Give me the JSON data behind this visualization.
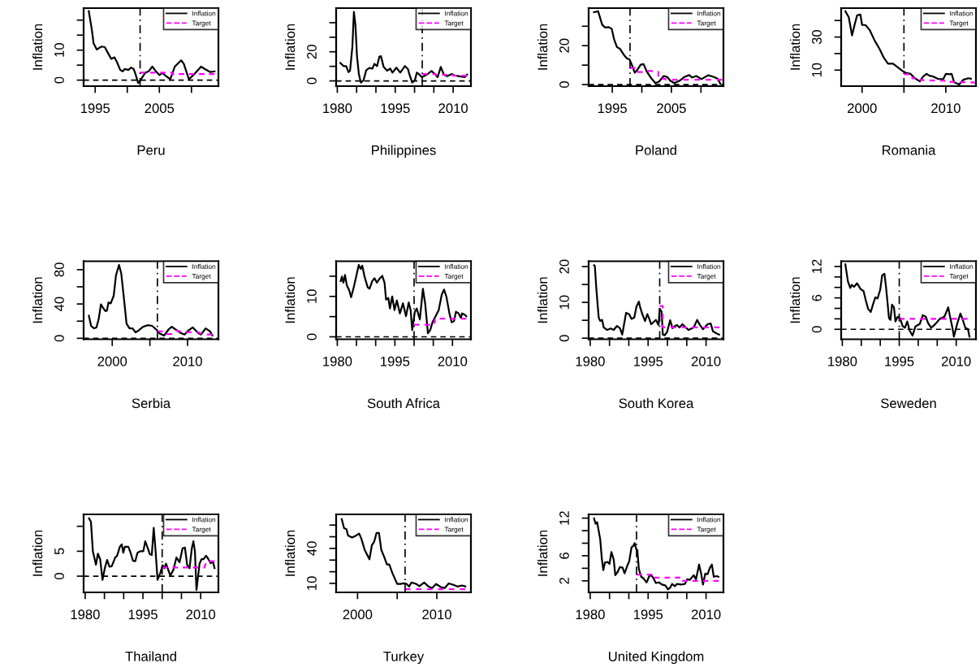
{
  "chart_data": [
    {
      "type": "line",
      "xlabel": "Peru",
      "ylabel": "Inflation",
      "xlim": [
        1993.2,
        2014.2
      ],
      "ylim": [
        -2,
        24
      ],
      "legend": "top right",
      "xticks": [
        1995,
        {
          "value": 2000,
          "label": null
        },
        2005,
        {
          "value": 2010,
          "label": null
        }
      ],
      "yticks": [
        0,
        {
          "value": 5,
          "label": null
        },
        10,
        {
          "value": 15,
          "label": null
        },
        {
          "value": 20,
          "label": null
        }
      ],
      "ref_lines": [
        {
          "axis": "x",
          "value": 2002,
          "line_style": "dashdot",
          "color": "#000000"
        },
        {
          "axis": "y",
          "value": 0,
          "line_style": "dashed",
          "color": "#000000"
        }
      ],
      "series": [
        {
          "name": "Inflation",
          "color": "#000000",
          "line_style": "solid",
          "x": [
            1994.0,
            1994.5,
            1994.75,
            1995.25,
            1995.6,
            1996,
            1996.5,
            1997,
            1997.5,
            1998,
            1998.4,
            1998.9,
            1999.3,
            1999.6,
            2000.2,
            2000.6,
            2001,
            2001.3,
            2001.7,
            2002.3,
            2002.8,
            2003.4,
            2003.9,
            2004.4,
            2005,
            2005.5,
            2006,
            2006.7,
            2007.4,
            2008.4,
            2008.8,
            2009.6,
            2010.5,
            2011.5,
            2012.1,
            2012.9,
            2013.6
          ],
          "values": [
            23.0,
            16.5,
            12.3,
            10.2,
            10.7,
            11.2,
            11.0,
            9.0,
            7.1,
            7.6,
            6.0,
            3.4,
            2.9,
            3.7,
            3.4,
            4.2,
            3.7,
            1.9,
            -1.0,
            0.8,
            2.4,
            3.1,
            4.5,
            3.1,
            1.7,
            2.4,
            1.4,
            0.3,
            4.5,
            6.6,
            5.5,
            0.3,
            2.1,
            4.5,
            3.7,
            2.7,
            2.9
          ]
        },
        {
          "name": "Target",
          "color": "#ff00ff",
          "line_style": "dashed",
          "x": [
            2002,
            2007,
            2007,
            2013.6
          ],
          "values": [
            2.5,
            2.5,
            2,
            2
          ]
        }
      ]
    },
    {
      "type": "line",
      "xlabel": "Philippines",
      "ylabel": "Inflation",
      "xlim": [
        1979.7,
        2014.6
      ],
      "ylim": [
        -3.6,
        50
      ],
      "legend": "top right",
      "xticks": [
        1980,
        {
          "value": 1985,
          "label": null
        },
        {
          "value": 1990,
          "label": null
        },
        1995,
        {
          "value": 2000,
          "label": null
        },
        {
          "value": 2005,
          "label": null
        },
        2010
      ],
      "yticks": [
        0,
        {
          "value": 10,
          "label": null
        },
        20,
        {
          "value": 30,
          "label": null
        },
        {
          "value": 40,
          "label": null
        }
      ],
      "ref_lines": [
        {
          "axis": "x",
          "value": 2002,
          "line_style": "dashdot",
          "color": "#000000"
        },
        {
          "axis": "y",
          "value": 0,
          "line_style": "dashed",
          "color": "#000000"
        }
      ],
      "series": [
        {
          "name": "Inflation",
          "color": "#000000",
          "line_style": "solid",
          "x": [
            1980.8,
            1981.6,
            1982.3,
            1982.9,
            1983.3,
            1983.9,
            1984.3,
            1984.7,
            1985.1,
            1985.6,
            1986.1,
            1986.8,
            1987.5,
            1988.3,
            1989.1,
            1989.6,
            1990.3,
            1990.9,
            1991.3,
            1992,
            1992.9,
            1993.7,
            1994.3,
            1995.3,
            1996.3,
            1997.5,
            1998.3,
            1998.7,
            1999.4,
            2000.1,
            2000.6,
            2001.1,
            2001.9,
            2003.2,
            2004.4,
            2005.2,
            2006,
            2006.8,
            2007.6,
            2008.4,
            2009.6,
            2010.4,
            2011.6,
            2013,
            2013.6
          ],
          "values": [
            12.3,
            10.2,
            10.2,
            6.0,
            7.0,
            23.4,
            47.4,
            38.3,
            17.0,
            4.3,
            -1.1,
            0.4,
            7.4,
            8.9,
            8.5,
            11.7,
            10.2,
            16.6,
            17.0,
            9.6,
            7.0,
            8.5,
            5.7,
            9.1,
            5.7,
            10.2,
            8.1,
            4.3,
            -1.1,
            0.4,
            5.7,
            4.7,
            2.6,
            4.3,
            6.8,
            4.9,
            2.6,
            9.6,
            4.3,
            3.2,
            4.7,
            3.8,
            3.2,
            2.6,
            4.3
          ]
        },
        {
          "name": "Target",
          "color": "#ff00ff",
          "line_style": "dashed",
          "x": [
            2002,
            2005.5,
            2005.5,
            2010,
            2010,
            2013.6
          ],
          "values": [
            4.7,
            4.7,
            4.2,
            4.2,
            3.6,
            3.6
          ]
        }
      ]
    },
    {
      "type": "line",
      "xlabel": "Poland",
      "ylabel": "Inflation",
      "xlim": [
        1991.0,
        2013.8
      ],
      "ylim": [
        -0.8,
        39.3
      ],
      "legend": "top right",
      "xticks": [
        1995,
        {
          "value": 2000,
          "label": null
        },
        2005,
        {
          "value": 2010,
          "label": null
        }
      ],
      "yticks": [
        0,
        {
          "value": 10,
          "label": null
        },
        20,
        {
          "value": 30,
          "label": null
        }
      ],
      "ref_lines": [
        {
          "axis": "x",
          "value": 1998,
          "line_style": "dashdot",
          "color": "#000000"
        },
        {
          "axis": "y",
          "value": 0,
          "line_style": "dashed",
          "color": "#000000"
        }
      ],
      "series": [
        {
          "name": "Inflation",
          "color": "#000000",
          "line_style": "solid",
          "x": [
            1991.9,
            1992.6,
            1993.3,
            1993.8,
            1994.4,
            1994.9,
            1995.3,
            1995.8,
            1996.3,
            1997,
            1997.5,
            1997.9,
            1998.3,
            1998.8,
            1999.2,
            1999.8,
            2000.3,
            2000.8,
            2001.5,
            2002.3,
            2002.9,
            2003.7,
            2004.3,
            2004.8,
            2005.5,
            2006.4,
            2007.2,
            2008,
            2008.5,
            2009.2,
            2010.1,
            2011.2,
            2012,
            2012.8,
            2013.3
          ],
          "values": [
            37.2,
            37.7,
            30.7,
            29.3,
            29.5,
            28.7,
            23.3,
            19.2,
            18.4,
            15.1,
            13.4,
            13.0,
            10.2,
            6.1,
            7.4,
            10.2,
            10.5,
            6.9,
            3.6,
            0.8,
            1.5,
            4.4,
            3.9,
            2.0,
            0.8,
            2.0,
            3.9,
            4.9,
            3.6,
            4.4,
            2.8,
            4.8,
            4.1,
            3.1,
            0.3
          ]
        },
        {
          "name": "Target",
          "color": "#ff00ff",
          "line_style": "dashed",
          "x": [
            1998,
            1999.2,
            1999.2,
            2000.5,
            2000.5,
            2002.8,
            2002.8,
            2004,
            2004,
            2013.6
          ],
          "values": [
            8.5,
            8.5,
            6.5,
            6.5,
            7,
            7,
            3,
            3,
            2.5,
            2.5
          ]
        }
      ]
    },
    {
      "type": "line",
      "xlabel": "Romania",
      "ylabel": "Inflation",
      "xlim": [
        1997.5,
        2013.6
      ],
      "ylim": [
        0.3,
        47.5
      ],
      "legend": "top right",
      "xticks": [
        2000,
        {
          "value": 2005,
          "label": null
        },
        2010
      ],
      "yticks": [
        10,
        {
          "value": 20,
          "label": null
        },
        30,
        {
          "value": 40,
          "label": null
        }
      ],
      "ref_lines": [
        {
          "axis": "x",
          "value": 2005,
          "line_style": "dashdot",
          "color": "#000000"
        }
      ],
      "series": [
        {
          "name": "Inflation",
          "color": "#000000",
          "line_style": "solid",
          "x": [
            1998.0,
            1998.4,
            1998.8,
            1999.1,
            1999.4,
            1999.8,
            2000,
            2000.4,
            2000.9,
            2001.5,
            2002.1,
            2002.6,
            2003.1,
            2003.7,
            2004.3,
            2004.8,
            2005.2,
            2005.8,
            2006.3,
            2006.9,
            2007.3,
            2007.7,
            2008.1,
            2008.5,
            2009.1,
            2009.7,
            2010.0,
            2010.5,
            2010.7,
            2011.0,
            2011.6,
            2012.1,
            2012.7,
            2013.0
          ],
          "values": [
            45.6,
            42.1,
            31.0,
            37.3,
            43.1,
            43.6,
            37.3,
            37.3,
            34.3,
            27.9,
            22.7,
            17.4,
            13.9,
            13.9,
            11.6,
            9.6,
            8.4,
            7.7,
            5.1,
            3.2,
            6.1,
            7.7,
            6.5,
            6.1,
            4.6,
            4.6,
            7.7,
            7.5,
            7.7,
            2.6,
            1.3,
            4.2,
            5.1,
            4.8
          ]
        },
        {
          "name": "Target",
          "color": "#ff00ff",
          "line_style": "dashed",
          "x": [
            2005,
            2006,
            2006,
            2007,
            2007,
            2010,
            2010,
            2013.6
          ],
          "values": [
            7.5,
            7.5,
            5,
            5,
            4,
            3.5,
            3,
            2.5
          ]
        }
      ]
    },
    {
      "type": "line",
      "xlabel": "Serbia",
      "ylabel": "Inflation",
      "xlim": [
        1996.2,
        2014.1
      ],
      "ylim": [
        -1.1,
        89.8
      ],
      "legend": "top right",
      "xticks": [
        2000,
        {
          "value": 2005,
          "label": null
        },
        2010
      ],
      "yticks": [
        0,
        {
          "value": 20,
          "label": null
        },
        40,
        {
          "value": 60,
          "label": null
        },
        80
      ],
      "ref_lines": [
        {
          "axis": "x",
          "value": 2006,
          "line_style": "dashdot",
          "color": "#000000"
        },
        {
          "axis": "y",
          "value": 0,
          "line_style": "dashed",
          "color": "#000000"
        }
      ],
      "series": [
        {
          "name": "Inflation",
          "color": "#000000",
          "line_style": "solid",
          "x": [
            1996.9,
            1997.2,
            1997.6,
            1997.9,
            1998.2,
            1998.5,
            1998.8,
            1999.1,
            1999.3,
            1999.5,
            1999.8,
            2000.2,
            2000.5,
            2000.9,
            2001.2,
            2001.6,
            2001.9,
            2002.3,
            2002.7,
            2003.1,
            2003.5,
            2004.1,
            2004.7,
            2005.3,
            2005.9,
            2006.3,
            2006.9,
            2007.5,
            2007.9,
            2008.5,
            2009.1,
            2009.6,
            2010.1,
            2010.7,
            2011.4,
            2011.8,
            2012.4,
            2013.0,
            2013.3
          ],
          "values": [
            26.2,
            14.2,
            11.6,
            12.7,
            22.5,
            39.6,
            35.3,
            31.6,
            32.4,
            41.8,
            40.7,
            49.8,
            73.5,
            85.5,
            75.3,
            42.5,
            17.1,
            11.6,
            11.6,
            6.9,
            9.1,
            13.5,
            15.3,
            14.5,
            9.8,
            5.5,
            3.3,
            10.5,
            13.5,
            9.8,
            6.2,
            4.4,
            9.1,
            12.7,
            6.2,
            4.4,
            11.6,
            8.0,
            3.3
          ]
        },
        {
          "name": "Target",
          "color": "#ff00ff",
          "line_style": "dashed",
          "x": [
            2006,
            2007,
            2007.2,
            2008.1,
            2008.5,
            2009.5,
            2011.5,
            2012,
            2013.3
          ],
          "values": [
            8,
            8,
            5,
            5,
            9,
            7,
            7,
            4.4,
            4.4
          ]
        }
      ]
    },
    {
      "type": "line",
      "xlabel": "South Africa",
      "ylabel": "Inflation",
      "xlim": [
        1979.7,
        2014.8
      ],
      "ylim": [
        -0.6,
        18.7
      ],
      "legend": "top right",
      "xticks": [
        1980,
        {
          "value": 1985,
          "label": null
        },
        {
          "value": 1990,
          "label": null
        },
        1995,
        {
          "value": 2000,
          "label": null
        },
        {
          "value": 2005,
          "label": null
        },
        2010
      ],
      "yticks": [
        0,
        {
          "value": 5,
          "label": null
        },
        10,
        {
          "value": 15,
          "label": null
        }
      ],
      "ref_lines": [
        {
          "axis": "x",
          "value": 2000,
          "line_style": "dashdot",
          "color": "#000000"
        },
        {
          "axis": "y",
          "value": 0,
          "line_style": "dashed",
          "color": "#000000"
        }
      ],
      "series": [
        {
          "name": "Inflation",
          "color": "#000000",
          "line_style": "solid",
          "x": [
            1980.9,
            1981.2,
            1981.6,
            1982,
            1982.5,
            1983.1,
            1983.6,
            1984.3,
            1985.1,
            1985.6,
            1986.1,
            1986.5,
            1987.1,
            1987.9,
            1988.4,
            1989.1,
            1989.7,
            1990.3,
            1991.1,
            1991.7,
            1992.3,
            1992.7,
            1993.3,
            1993.7,
            1994.3,
            1994.9,
            1995.5,
            1996.3,
            1997.1,
            1997.9,
            1998.6,
            1999.1,
            1999.5,
            2000.2,
            2000.7,
            2001.5,
            2002.3,
            2002.9,
            2003.6,
            2004.2,
            2004.8,
            2005.6,
            2006.4,
            2007.2,
            2007.8,
            2008.4,
            2009.2,
            2009.8,
            2010.4,
            2010.9,
            2011.6,
            2012.2,
            2012.5,
            2013.2,
            2013.6
          ],
          "values": [
            13.8,
            14.9,
            13.4,
            15.3,
            12.7,
            11.5,
            9.8,
            12.3,
            15.7,
            17.8,
            16.8,
            17.6,
            14.9,
            12.3,
            11.9,
            13.8,
            14.5,
            13.4,
            14.5,
            15.1,
            13.4,
            9.2,
            9.6,
            7.0,
            10.0,
            6.6,
            9.0,
            5.8,
            8.3,
            5.1,
            8.5,
            6.6,
            1.7,
            6.2,
            7.0,
            4.3,
            11.9,
            8.1,
            0.9,
            1.7,
            3.6,
            5.1,
            6.6,
            10.4,
            11.7,
            10.0,
            5.8,
            3.6,
            3.9,
            6.2,
            5.8,
            4.7,
            5.8,
            5.5,
            5.1
          ]
        },
        {
          "name": "Target",
          "color": "#ff00ff",
          "line_style": "dashed",
          "x": [
            2000,
            2004.3,
            2004.3,
            2005.4,
            2005.4,
            2013.6
          ],
          "values": [
            3,
            3,
            3.5,
            3.5,
            4.5,
            4.5
          ]
        }
      ]
    },
    {
      "type": "line",
      "xlabel": "South Korea",
      "ylabel": "Inflation",
      "xlim": [
        1979.6,
        2014.5
      ],
      "ylim": [
        -0.3,
        21.5
      ],
      "legend": "top right",
      "xticks": [
        1980,
        {
          "value": 1985,
          "label": null
        },
        {
          "value": 1990,
          "label": null
        },
        1995,
        {
          "value": 2000,
          "label": null
        },
        {
          "value": 2005,
          "label": null
        },
        2010
      ],
      "yticks": [
        0,
        {
          "value": 5,
          "label": null
        },
        10,
        {
          "value": 15,
          "label": null
        },
        20
      ],
      "ref_lines": [
        {
          "axis": "x",
          "value": 1998,
          "line_style": "dashdot",
          "color": "#000000"
        },
        {
          "axis": "y",
          "value": 0,
          "line_style": "dashed",
          "color": "#000000"
        }
      ],
      "series": [
        {
          "name": "Inflation",
          "color": "#000000",
          "line_style": "solid",
          "x": [
            1981,
            1981.2,
            1981.6,
            1982.2,
            1982.6,
            1983.1,
            1983.5,
            1984.4,
            1985.3,
            1986.1,
            1986.9,
            1987.7,
            1988.3,
            1989.3,
            1990.1,
            1990.7,
            1991.4,
            1992,
            1992.6,
            1993,
            1993.5,
            1994.2,
            1994.8,
            1995.3,
            1995.8,
            1997,
            1997.7,
            1998,
            1998.5,
            1998.8,
            1999.3,
            1999.9,
            2000.7,
            2001.3,
            2001.9,
            2002.5,
            2003.1,
            2003.9,
            2004.7,
            2005.5,
            2006.8,
            2007.7,
            2008.4,
            2009.2,
            2010.4,
            2011.2,
            2011.8,
            2012.8,
            2013.4
          ],
          "values": [
            20.4,
            20.2,
            13.7,
            5.8,
            4.8,
            5.1,
            3.0,
            2.3,
            2.7,
            2.3,
            3.4,
            2.8,
            1.0,
            7.1,
            6.7,
            5.4,
            5.7,
            8.9,
            10.2,
            8.4,
            6.7,
            4.8,
            6.7,
            5.4,
            3.9,
            5.1,
            3.7,
            8.2,
            7.4,
            1.0,
            0.8,
            1.7,
            5.0,
            2.8,
            3.4,
            3.7,
            3.0,
            3.9,
            3.0,
            2.3,
            3.0,
            5.1,
            3.7,
            2.5,
            3.9,
            4.1,
            1.9,
            1.3,
            1.0
          ]
        },
        {
          "name": "Target",
          "color": "#ff00ff",
          "line_style": "dashed",
          "x": [
            1998,
            1998.8,
            1998.8,
            2013.5
          ],
          "values": [
            9,
            9,
            3,
            3
          ]
        }
      ]
    },
    {
      "type": "line",
      "xlabel": "Seweden",
      "ylabel": "Inflation",
      "xlim": [
        1979.7,
        2015.2
      ],
      "ylim": [
        -1.9,
        13
      ],
      "legend": "top right",
      "xticks": [
        1980,
        {
          "value": 1985,
          "label": null
        },
        {
          "value": 1990,
          "label": null
        },
        1995,
        {
          "value": 2000,
          "label": null
        },
        {
          "value": 2005,
          "label": null
        },
        2010
      ],
      "yticks": [
        0,
        {
          "value": 2,
          "label": null
        },
        {
          "value": 4,
          "label": null
        },
        6,
        {
          "value": 8,
          "label": null
        },
        {
          "value": 10,
          "label": null
        },
        12
      ],
      "ref_lines": [
        {
          "axis": "x",
          "value": 1995,
          "line_style": "dashdot",
          "color": "#000000"
        },
        {
          "axis": "y",
          "value": 0,
          "line_style": "dashed",
          "color": "#000000"
        }
      ],
      "series": [
        {
          "name": "Inflation",
          "color": "#000000",
          "line_style": "solid",
          "x": [
            1980.8,
            1981.5,
            1982.1,
            1982.5,
            1983.1,
            1983.9,
            1984.8,
            1985.6,
            1986.2,
            1986.8,
            1987.5,
            1988.1,
            1988.7,
            1989.3,
            1990,
            1990.5,
            1991.1,
            1991.5,
            1991.9,
            1992.3,
            1992.7,
            1993.1,
            1993.6,
            1994,
            1994.6,
            1995.2,
            1995.9,
            1996.5,
            1997.1,
            1997.7,
            1998.5,
            1999.3,
            2000.4,
            2001.2,
            2002.0,
            2002.6,
            2003.4,
            2004.5,
            2005.7,
            2006.9,
            2007.9,
            2008.3,
            2009.0,
            2009.4,
            2010.2,
            2011.1,
            2011.6,
            2012.4,
            2013.1,
            2013.5
          ],
          "values": [
            12.4,
            9.1,
            7.9,
            8.5,
            8.1,
            8.8,
            7.7,
            7.3,
            5.5,
            3.9,
            3.3,
            4.8,
            6.1,
            5.9,
            7.6,
            10.3,
            10.6,
            8.2,
            5.2,
            2.1,
            1.8,
            4.7,
            4.2,
            1.5,
            2.4,
            2.1,
            0.6,
            0.3,
            1.5,
            -0.2,
            -1.2,
            0.6,
            1.0,
            2.7,
            2.4,
            1.2,
            0.3,
            1.0,
            2.0,
            2.4,
            4.2,
            2.7,
            0.3,
            -1.4,
            0.9,
            3.0,
            2.1,
            0.3,
            0,
            -1.4
          ]
        },
        {
          "name": "Target",
          "color": "#ff00ff",
          "line_style": "dashed",
          "x": [
            1995,
            2013
          ],
          "values": [
            2,
            2
          ]
        }
      ]
    },
    {
      "type": "line",
      "xlabel": "Thailand",
      "ylabel": "Inflation",
      "xlim": [
        1979.6,
        2014.6
      ],
      "ylim": [
        -3.25,
        12.4
      ],
      "legend": "top right",
      "xticks": [
        1980,
        {
          "value": 1985,
          "label": null
        },
        {
          "value": 1990,
          "label": null
        },
        1995,
        {
          "value": 2000,
          "label": null
        },
        {
          "value": 2005,
          "label": null
        },
        2010
      ],
      "yticks": [
        0,
        5,
        {
          "value": 10,
          "label": null
        }
      ],
      "ref_lines": [
        {
          "axis": "x",
          "value": 2000,
          "line_style": "dashdot",
          "color": "#000000"
        },
        {
          "axis": "y",
          "value": 0,
          "line_style": "dashed",
          "color": "#000000"
        }
      ],
      "series": [
        {
          "name": "Inflation",
          "color": "#000000",
          "line_style": "solid",
          "x": [
            1981,
            1981.5,
            1982,
            1982.8,
            1983.3,
            1983.9,
            1984.5,
            1985.1,
            1985.7,
            1986.3,
            1986.9,
            1987.8,
            1988.3,
            1989,
            1989.5,
            1989.9,
            1990.3,
            1991.2,
            1991.8,
            1992.4,
            1993,
            1993.6,
            1994.3,
            1995.1,
            1995.6,
            1996.2,
            1996.8,
            1997.3,
            1997.8,
            1998.2,
            1998.8,
            1999.5,
            2000.1,
            2000.6,
            2001.0,
            2002.1,
            2002.9,
            2003.7,
            2004.5,
            2005.3,
            2005.9,
            2006.5,
            2007.1,
            2007.7,
            2008.1,
            2008.5,
            2008.9,
            2009.7,
            2010.2,
            2010.7,
            2011.4,
            2012,
            2012.6,
            2013.2,
            2013.6
          ],
          "values": [
            11.6,
            10.9,
            5.0,
            2.3,
            4.5,
            3.4,
            -0.75,
            1.6,
            3.25,
            1.9,
            2.0,
            3.75,
            4.1,
            5.9,
            6.4,
            4.7,
            5.9,
            5.9,
            4.7,
            3.1,
            3.0,
            4.7,
            5.0,
            5.0,
            7.0,
            5.75,
            4.4,
            4.25,
            9.7,
            5.9,
            -0.75,
            0.6,
            2.2,
            1.6,
            2.5,
            0.1,
            1.25,
            3.75,
            2.8,
            5.6,
            5.75,
            2.2,
            1.6,
            5.6,
            7.0,
            5.0,
            -2.8,
            2.5,
            3.4,
            3.4,
            4.1,
            3.4,
            2.6,
            2.9,
            1.6
          ]
        },
        {
          "name": "Target",
          "color": "#ff00ff",
          "line_style": "dashed",
          "x": [
            2000,
            2011,
            2011.5,
            2013.6
          ],
          "values": [
            1.75,
            1.75,
            3,
            3
          ]
        }
      ]
    },
    {
      "type": "line",
      "xlabel": "Turkey",
      "ylabel": "Inflation",
      "xlim": [
        1997.3,
        2014.3
      ],
      "ylim": [
        2.3,
        69.2
      ],
      "legend": "top right",
      "xticks": [
        2000,
        {
          "value": 2005,
          "label": null
        },
        2010
      ],
      "yticks": [
        10,
        {
          "value": 20,
          "label": null
        },
        {
          "value": 30,
          "label": null
        },
        40,
        {
          "value": 50,
          "label": null
        },
        {
          "value": 60,
          "label": null
        }
      ],
      "ref_lines": [
        {
          "axis": "x",
          "value": 2006,
          "line_style": "dashdot",
          "color": "#000000"
        }
      ],
      "series": [
        {
          "name": "Inflation",
          "color": "#000000",
          "line_style": "solid",
          "x": [
            1998.0,
            1998.3,
            1998.6,
            1998.8,
            1999.3,
            1999.7,
            2000.2,
            2000.5,
            2000.9,
            2001.5,
            2001.8,
            2002.1,
            2002.4,
            2002.7,
            2003.0,
            2003.4,
            2003.7,
            2004.0,
            2004.4,
            2005,
            2005.4,
            2005.8,
            2006.2,
            2006.5,
            2006.8,
            2007.4,
            2007.8,
            2008.4,
            2008.9,
            2009.4,
            2009.9,
            2010.5,
            2011.0,
            2011.5,
            2012.1,
            2012.6,
            2013.2,
            2013.6
          ],
          "values": [
            65.2,
            57.3,
            56.5,
            51.1,
            49.3,
            50.6,
            52.7,
            48.0,
            38.7,
            30.7,
            42.6,
            45.8,
            53.3,
            53.3,
            38.7,
            32.0,
            26.2,
            26.2,
            18.8,
            9.5,
            9.5,
            10.0,
            9.5,
            7.3,
            10.8,
            9.5,
            7.6,
            10.8,
            7.6,
            6.0,
            9.5,
            6.8,
            6.0,
            10.0,
            8.7,
            7.3,
            8.2,
            7.3
          ]
        },
        {
          "name": "Target",
          "color": "#ff00ff",
          "line_style": "dashed",
          "x": [
            2006,
            2013.6
          ],
          "values": [
            5,
            5
          ]
        }
      ]
    },
    {
      "type": "line",
      "xlabel": "United Kingdom",
      "ylabel": "Inflation",
      "xlim": [
        1979.6,
        2014.5
      ],
      "ylim": [
        0.16,
        12.6
      ],
      "legend": "top right",
      "xticks": [
        1980,
        {
          "value": 1985,
          "label": null
        },
        {
          "value": 1990,
          "label": null
        },
        1995,
        {
          "value": 2000,
          "label": null
        },
        {
          "value": 2005,
          "label": null
        },
        2010
      ],
      "yticks": [
        2,
        {
          "value": 4,
          "label": null
        },
        6,
        {
          "value": 8,
          "label": null
        },
        {
          "value": 10,
          "label": null
        },
        12
      ],
      "ref_lines": [
        {
          "axis": "x",
          "value": 1992,
          "line_style": "dashdot",
          "color": "#000000"
        }
      ],
      "series": [
        {
          "name": "Inflation",
          "color": "#000000",
          "line_style": "solid",
          "x": [
            1981,
            1981.4,
            1981.8,
            1982.6,
            1983,
            1983.4,
            1983.8,
            1984.5,
            1985,
            1985.5,
            1986.1,
            1986.5,
            1987.1,
            1987.7,
            1988.4,
            1988.9,
            1989.6,
            1990.1,
            1990.7,
            1991.2,
            1991.5,
            1991.9,
            1992.2,
            1992.6,
            1993.2,
            1993.8,
            1994.2,
            1994.6,
            1995.3,
            1995.8,
            1996.4,
            1997,
            1997.8,
            1998.6,
            1999.5,
            2000.1,
            2000.7,
            2001.2,
            2001.9,
            2002.5,
            2003.5,
            2004.5,
            2005.1,
            2005.8,
            2006.8,
            2007.4,
            2008.2,
            2008.8,
            2009.2,
            2009.8,
            2010.4,
            2011.0,
            2011.5,
            2012.0,
            2012.8,
            2013.2
          ],
          "values": [
            11.95,
            11.1,
            11.35,
            8.6,
            5.6,
            3.7,
            4.9,
            5.0,
            4.7,
            6.6,
            5.35,
            2.9,
            3.4,
            4.2,
            4.1,
            3.2,
            4.4,
            5.1,
            7.35,
            7.6,
            8.0,
            7.1,
            6.9,
            3.9,
            2.65,
            2.4,
            2.05,
            1.75,
            2.75,
            2.9,
            2.4,
            1.65,
            1.75,
            1.4,
            1.25,
            0.65,
            0.9,
            1.5,
            1.15,
            1.5,
            1.4,
            1.5,
            2.25,
            2.15,
            2.9,
            2.25,
            4.6,
            2.9,
            1.4,
            3.15,
            3.05,
            4.1,
            4.6,
            2.65,
            2.75,
            2.65
          ]
        },
        {
          "name": "Target",
          "color": "#ff00ff",
          "line_style": "dashed",
          "x": [
            1992,
            1996.8,
            1996.8,
            2003.9,
            2003.9,
            2013.3
          ],
          "values": [
            3,
            3,
            2.5,
            2.5,
            2,
            2
          ]
        }
      ]
    }
  ]
}
